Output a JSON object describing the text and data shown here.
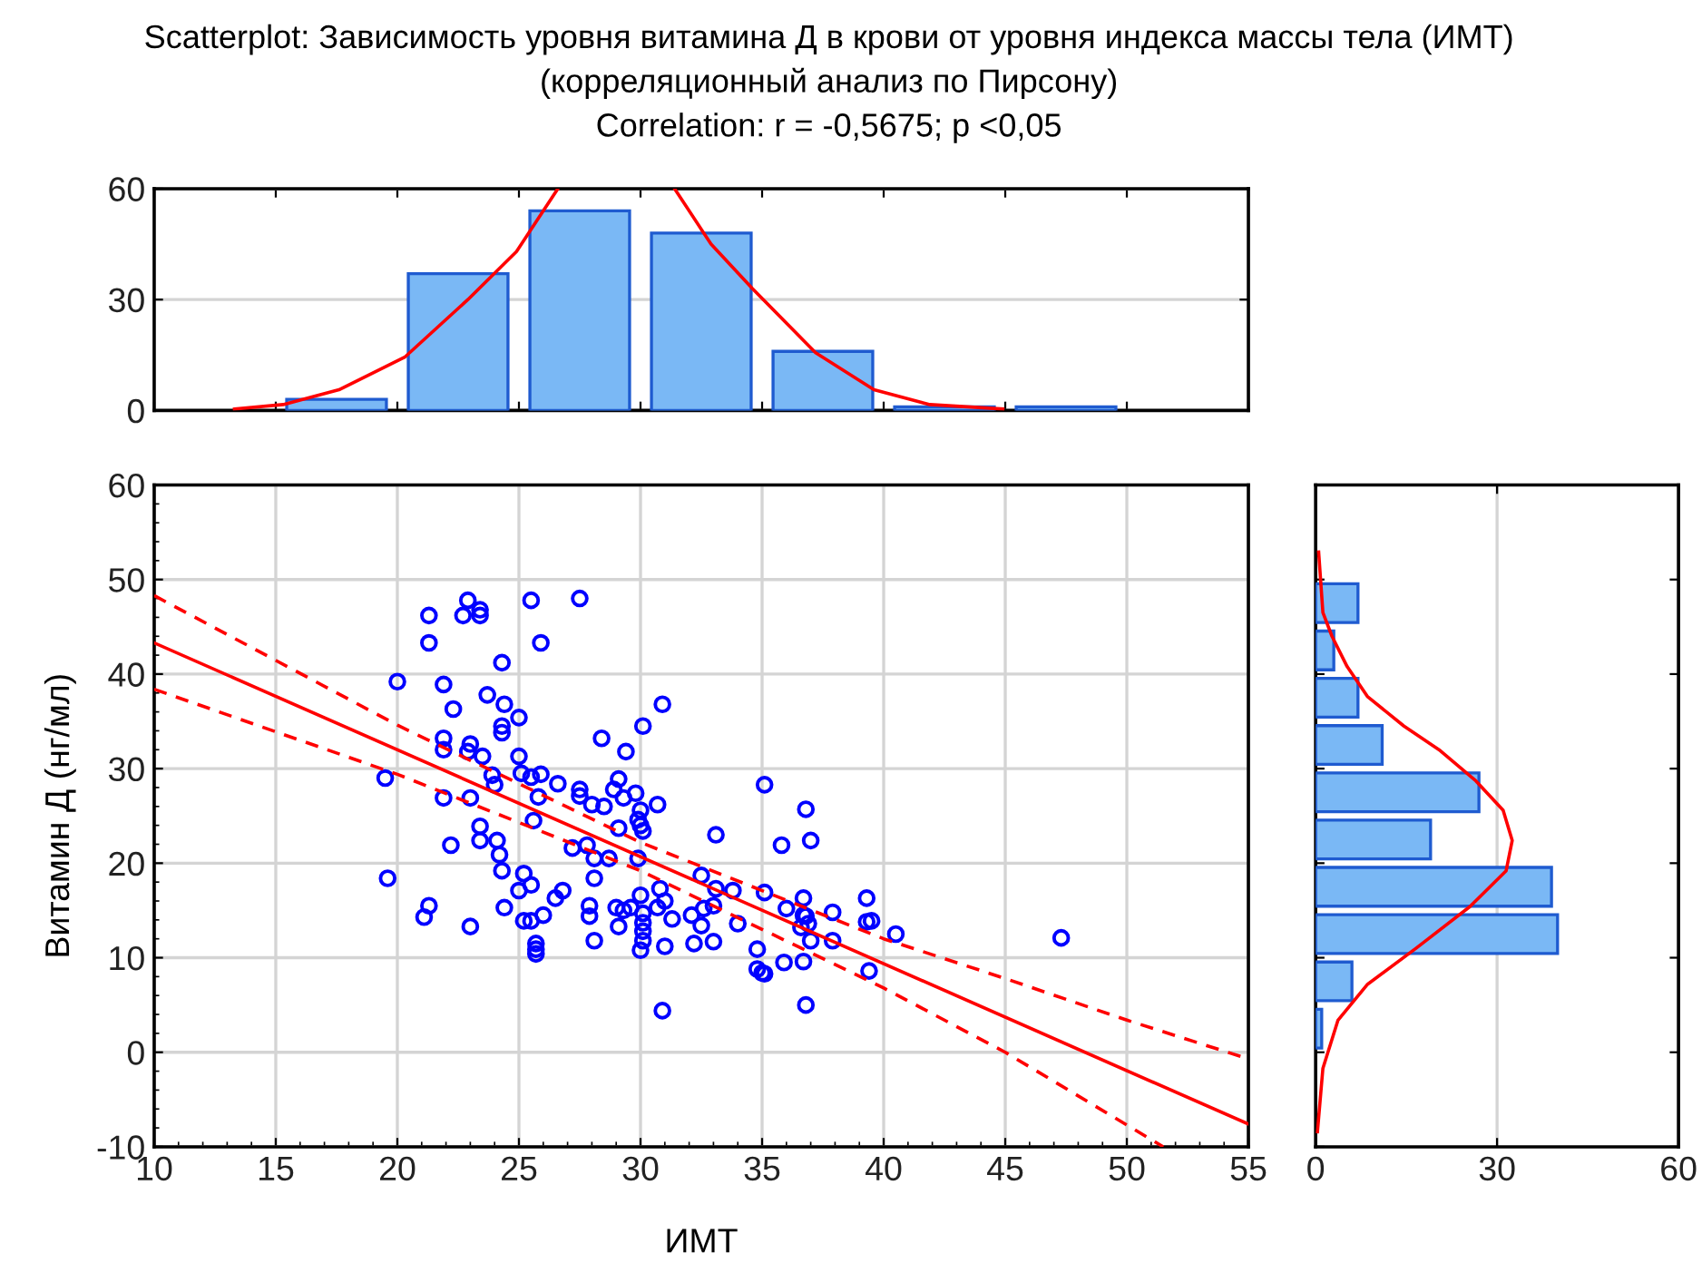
{
  "chart_data": [
    {
      "type": "histogram",
      "title": "Scatterplot: Зависимость уровня витамина Д в крови от уровня индекса массы тела (ИМТ)",
      "subtitle": "(корреляционный анализ по Пирсону)",
      "annotations": [
        "Correlation: r = -0,5675; p <0,05"
      ],
      "xlim": [
        10,
        55
      ],
      "ylim": [
        0,
        60
      ],
      "yticks": [
        0,
        30,
        60
      ],
      "tick_labels": "y",
      "grid": "y",
      "series": [
        {
          "type": "histogram",
          "color": "#7ab8f5",
          "bins": [
            15,
            20,
            25,
            30,
            35,
            40,
            45,
            50
          ],
          "values": [
            3,
            37,
            54,
            48,
            16,
            1,
            1
          ]
        },
        {
          "type": "line",
          "color": "#ff0000",
          "x": [
            13.3,
            15.3,
            17.6,
            20.3,
            22.9,
            24.9,
            26.6,
            29,
            31.4,
            32.9,
            34.6,
            37.2,
            39.6,
            41.9,
            44.9
          ],
          "values": [
            0.4,
            1.6,
            5.6,
            14.4,
            30,
            43,
            60,
            null,
            60,
            45,
            33,
            15.6,
            5.6,
            1.6,
            0.4
          ]
        }
      ]
    },
    {
      "type": "scatter",
      "xlabel": "ИМТ",
      "ylabel": "Витамин Д (нг/мл)",
      "xlim": [
        10,
        55
      ],
      "ylim": [
        -10,
        60
      ],
      "xticks": [
        10,
        15,
        20,
        25,
        30,
        35,
        40,
        45,
        50,
        55
      ],
      "yticks": [
        -10,
        0,
        10,
        20,
        30,
        40,
        50,
        60
      ],
      "grid": true,
      "series": [
        {
          "type": "scatter",
          "color": "#0000ff",
          "marker": "circle",
          "x": [
            19.5,
            19.6,
            21.3,
            21.3,
            22.9,
            22.7,
            23.4,
            23.4,
            25.5,
            27.5,
            25.9,
            24.3,
            20.0,
            21.9,
            23.7,
            24.4,
            22.3,
            25.0,
            24.3,
            24.3,
            21.9,
            23.0,
            21.9,
            22.9,
            23.5,
            25.0,
            28.4,
            29.4,
            30.9,
            30.1,
            21.9,
            23.0,
            23.9,
            24.0,
            25.1,
            25.5,
            25.9,
            25.8,
            26.6,
            27.5,
            27.5,
            28.0,
            28.5,
            28.9,
            29.1,
            29.3,
            29.8,
            30.7,
            30.0,
            29.9,
            30.0,
            30.1,
            25.6,
            23.4,
            23.4,
            24.1,
            24.2,
            24.3,
            22.2,
            27.2,
            27.8,
            28.1,
            28.7,
            29.1,
            29.9,
            21.3,
            21.1,
            23.0,
            24.4,
            25.2,
            25.5,
            25.0,
            26.5,
            26.8,
            28.1,
            25.2,
            25.5,
            26.0,
            25.7,
            25.7,
            25.7,
            27.9,
            27.9,
            28.1,
            29.0,
            29.3,
            29.1,
            29.6,
            30.0,
            30.1,
            30.1,
            30.1,
            30.1,
            30.0,
            30.7,
            31.0,
            31.3,
            31.0,
            30.8,
            33.1,
            35.1,
            36.8,
            35.8,
            37.0,
            32.5,
            33.1,
            33.8,
            35.1,
            36.0,
            36.7,
            37.9,
            32.6,
            33.0,
            32.1,
            32.5,
            33.0,
            34.0,
            32.2,
            34.8,
            35.0,
            35.9,
            36.7,
            36.9,
            37.9,
            36.7,
            39.3,
            39.3,
            39.4,
            47.3,
            40.5,
            39.5,
            36.8,
            34.8,
            35.1,
            36.8,
            36.6,
            37.0,
            30.9
          ],
          "values": [
            29.0,
            18.4,
            46.2,
            43.3,
            47.8,
            46.2,
            46.8,
            46.2,
            47.8,
            48.0,
            43.3,
            41.2,
            39.2,
            38.9,
            37.8,
            36.8,
            36.3,
            35.4,
            34.5,
            33.8,
            33.2,
            32.6,
            32.0,
            31.8,
            31.3,
            31.3,
            33.2,
            31.8,
            36.8,
            34.5,
            26.9,
            26.9,
            29.3,
            28.3,
            29.5,
            29.1,
            29.4,
            27.0,
            28.4,
            27.8,
            27.1,
            26.2,
            26.0,
            27.8,
            28.9,
            26.9,
            27.4,
            26.2,
            25.6,
            24.6,
            24.0,
            23.4,
            24.5,
            23.9,
            22.4,
            22.4,
            20.9,
            19.2,
            21.9,
            21.6,
            21.9,
            20.5,
            20.5,
            23.7,
            20.5,
            15.5,
            14.3,
            13.3,
            15.3,
            18.9,
            17.7,
            17.1,
            16.3,
            17.1,
            18.4,
            13.9,
            13.9,
            14.5,
            11.5,
            10.9,
            10.4,
            15.5,
            14.4,
            11.8,
            15.3,
            15.0,
            13.3,
            15.3,
            16.6,
            14.7,
            13.7,
            12.8,
            11.8,
            10.8,
            15.3,
            16.0,
            14.1,
            11.2,
            17.3,
            23.0,
            28.3,
            25.7,
            21.9,
            22.4,
            18.7,
            17.3,
            17.1,
            16.9,
            15.2,
            16.3,
            14.8,
            15.2,
            15.5,
            14.5,
            13.4,
            11.7,
            13.6,
            11.5,
            10.9,
            8.4,
            9.5,
            9.6,
            13.6,
            11.8,
            14.5,
            16.3,
            13.8,
            8.6,
            12.1,
            12.5,
            13.9,
            5.0,
            8.8,
            8.3,
            14.4,
            13.2,
            11.8,
            4.4
          ]
        },
        {
          "type": "line",
          "color": "#ff0000",
          "line_style": "solid",
          "x": [
            10,
            55
          ],
          "values": [
            43.3,
            -7.6
          ]
        },
        {
          "type": "line",
          "color": "#ff0000",
          "line_style": "dashed",
          "x": [
            10,
            20,
            30,
            40,
            45,
            50,
            55
          ],
          "values": [
            48.3,
            34.6,
            22.2,
            12.0,
            7.8,
            3.4,
            -0.7
          ]
        },
        {
          "type": "line",
          "color": "#ff0000",
          "line_style": "dashed",
          "x": [
            10,
            20,
            30,
            40,
            45,
            51.5
          ],
          "values": [
            38.4,
            29.4,
            19.2,
            6.8,
            0,
            -10
          ]
        }
      ]
    },
    {
      "type": "histogram",
      "orientation": "horizontal",
      "xlim": [
        0,
        60
      ],
      "xticks": [
        0,
        30,
        60
      ],
      "ylim": [
        -10,
        60
      ],
      "tick_labels": "x",
      "grid": "x",
      "series": [
        {
          "type": "histogram",
          "color": "#7ab8f5",
          "bins": [
            0,
            5,
            10,
            15,
            20,
            25,
            30,
            35,
            40,
            45,
            50
          ],
          "values": [
            1,
            6,
            40,
            39,
            19,
            27,
            11,
            7,
            3,
            7
          ]
        },
        {
          "type": "line",
          "color": "#ff0000",
          "x": [
            52.9,
            46.5,
            44,
            40.8,
            37.6,
            34.5,
            31.9,
            28.7,
            25.6,
            22.4,
            19.2,
            15.4,
            11,
            7.2,
            3.4,
            -1.7,
            -8.4
          ],
          "values": [
            0.5,
            1.2,
            2.7,
            5.2,
            8.6,
            14.6,
            20.6,
            26.5,
            31,
            32.5,
            31.5,
            25.5,
            16.6,
            8.6,
            3.7,
            1.2,
            0.3
          ]
        }
      ]
    }
  ]
}
